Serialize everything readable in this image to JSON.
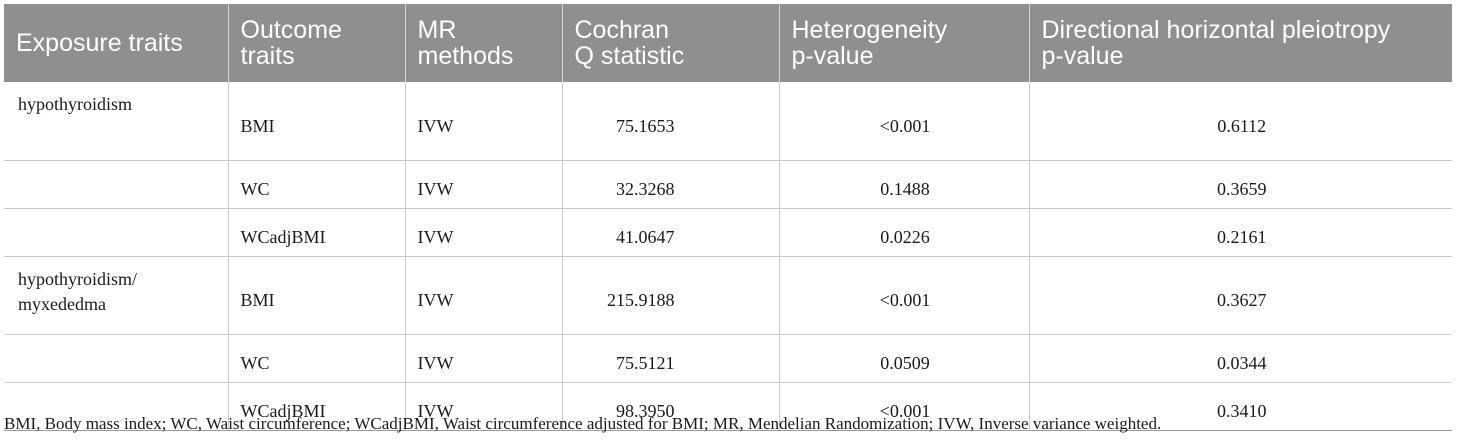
{
  "table": {
    "headers": [
      "Exposure traits",
      "Outcome\ntraits",
      "MR\nmethods",
      "Cochran\nQ statistic",
      "Heterogeneity\np-value",
      "Directional horizontal pleiotropy\np-value"
    ],
    "rows": [
      {
        "exposure": "hypothyroidism",
        "outcome": "BMI",
        "method": "IVW",
        "q": "75.1653",
        "het_p": "<0.001",
        "pleio_p": "0.6112"
      },
      {
        "exposure": "",
        "outcome": "WC",
        "method": "IVW",
        "q": "32.3268",
        "het_p": "0.1488",
        "pleio_p": "0.3659"
      },
      {
        "exposure": "",
        "outcome": "WCadjBMI",
        "method": "IVW",
        "q": "41.0647",
        "het_p": "0.0226",
        "pleio_p": "0.2161"
      },
      {
        "exposure": "hypothyroidism/\nmyxededma",
        "outcome": "BMI",
        "method": "IVW",
        "q": "215.9188",
        "het_p": "<0.001",
        "pleio_p": "0.3627"
      },
      {
        "exposure": "",
        "outcome": "WC",
        "method": "IVW",
        "q": "75.5121",
        "het_p": "0.0509",
        "pleio_p": "0.0344"
      },
      {
        "exposure": "",
        "outcome": "WCadjBMI",
        "method": "IVW",
        "q": "98.3950",
        "het_p": "<0.001",
        "pleio_p": "0.3410"
      }
    ]
  },
  "footnote": "BMI, Body mass index; WC, Waist circumference; WCadjBMI, Waist circumference adjusted for BMI; MR, Mendelian Randomization; IVW, Inverse variance weighted.",
  "colors": {
    "header_bg": "#8f8f8f",
    "header_text": "#ffffff",
    "rule": "#c8c8c8"
  }
}
